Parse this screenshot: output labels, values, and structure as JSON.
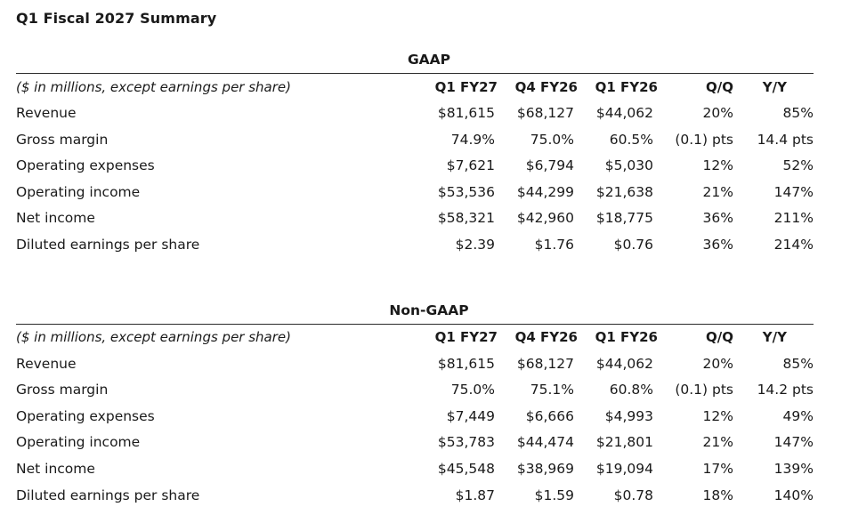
{
  "title": "Q1 Fiscal 2027 Summary",
  "columns": [
    "Q1 FY27",
    "Q4 FY26",
    "Q1 FY26",
    "Q/Q",
    "Y/Y"
  ],
  "row_header_label": "($ in millions, except earnings per share)",
  "sections": [
    {
      "heading": "GAAP",
      "rows": [
        {
          "label": "Revenue",
          "values": [
            "$81,615",
            "$68,127",
            "$44,062",
            "20%",
            "85%"
          ]
        },
        {
          "label": "Gross margin",
          "values": [
            "74.9%",
            "75.0%",
            "60.5%",
            "(0.1) pts",
            "14.4 pts"
          ]
        },
        {
          "label": "Operating expenses",
          "values": [
            "$7,621",
            "$6,794",
            "$5,030",
            "12%",
            "52%"
          ]
        },
        {
          "label": "Operating income",
          "values": [
            "$53,536",
            "$44,299",
            "$21,638",
            "21%",
            "147%"
          ]
        },
        {
          "label": "Net income",
          "values": [
            "$58,321",
            "$42,960",
            "$18,775",
            "36%",
            "211%"
          ]
        },
        {
          "label": "Diluted earnings per share",
          "values": [
            "$2.39",
            "$1.76",
            "$0.76",
            "36%",
            "214%"
          ]
        }
      ]
    },
    {
      "heading": "Non-GAAP",
      "rows": [
        {
          "label": "Revenue",
          "values": [
            "$81,615",
            "$68,127",
            "$44,062",
            "20%",
            "85%"
          ]
        },
        {
          "label": "Gross margin",
          "values": [
            "75.0%",
            "75.1%",
            "60.8%",
            "(0.1) pts",
            "14.2 pts"
          ]
        },
        {
          "label": "Operating expenses",
          "values": [
            "$7,449",
            "$6,666",
            "$4,993",
            "12%",
            "49%"
          ]
        },
        {
          "label": "Operating income",
          "values": [
            "$53,783",
            "$44,474",
            "$21,801",
            "21%",
            "147%"
          ]
        },
        {
          "label": "Net income",
          "values": [
            "$45,548",
            "$38,969",
            "$19,094",
            "17%",
            "139%"
          ]
        },
        {
          "label": "Diluted earnings per share",
          "values": [
            "$1.87",
            "$1.59",
            "$0.78",
            "18%",
            "140%"
          ]
        }
      ]
    }
  ]
}
